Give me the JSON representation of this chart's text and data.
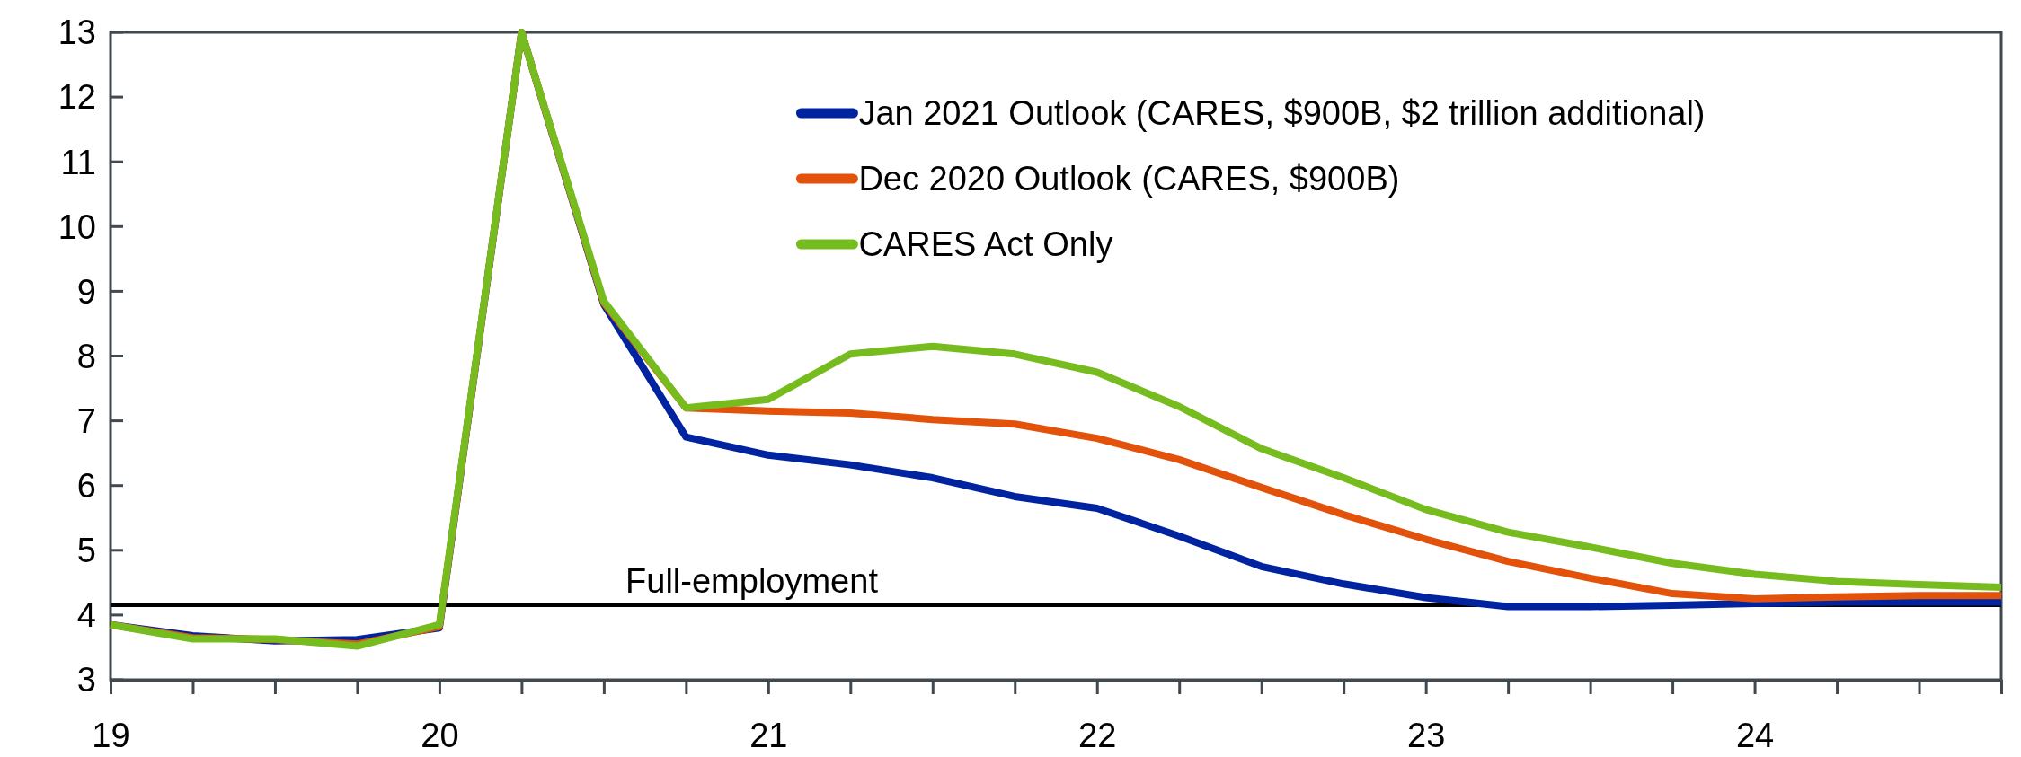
{
  "chart_data": {
    "type": "line",
    "x": [
      19,
      19.25,
      19.5,
      19.75,
      20,
      20.25,
      20.5,
      20.75,
      21,
      21.25,
      21.5,
      21.75,
      22,
      22.25,
      22.5,
      22.75,
      23,
      23.25,
      23.5,
      23.75,
      24,
      24.25,
      24.5,
      24.75
    ],
    "series": [
      {
        "name": "Jan 2021 Outlook (CARES, $900B, $2 trillion additional)",
        "color": "#0023a0",
        "values": [
          3.85,
          3.68,
          3.6,
          3.62,
          3.8,
          13,
          8.8,
          6.75,
          6.47,
          6.32,
          6.12,
          5.83,
          5.65,
          5.22,
          4.75,
          4.48,
          4.27,
          4.13,
          4.13,
          4.15,
          4.18,
          4.2,
          4.2,
          4.2
        ]
      },
      {
        "name": "Dec 2020 Outlook (CARES, $900B)",
        "color": "#e2520a",
        "values": [
          3.85,
          3.65,
          3.62,
          3.55,
          3.82,
          13,
          8.82,
          7.2,
          7.15,
          7.12,
          7.02,
          6.95,
          6.73,
          6.4,
          5.97,
          5.55,
          5.17,
          4.83,
          4.57,
          4.33,
          4.25,
          4.28,
          4.3,
          4.3
        ]
      },
      {
        "name": "CARES Act Only",
        "color": "#77bc1f",
        "values": [
          3.85,
          3.63,
          3.63,
          3.52,
          3.85,
          13,
          8.85,
          7.2,
          7.33,
          8.03,
          8.15,
          8.03,
          7.75,
          7.22,
          6.57,
          6.12,
          5.63,
          5.28,
          5.05,
          4.8,
          4.63,
          4.52,
          4.47,
          4.43
        ]
      }
    ],
    "xlim": [
      19,
      24.75
    ],
    "xticks": [
      19,
      {
        "value": 19.25,
        "label": null
      },
      {
        "value": 19.5,
        "label": null
      },
      {
        "value": 19.75,
        "label": null
      },
      20,
      {
        "value": 20.25,
        "label": null
      },
      {
        "value": 20.5,
        "label": null
      },
      {
        "value": 20.75,
        "label": null
      },
      21,
      {
        "value": 21.25,
        "label": null
      },
      {
        "value": 21.5,
        "label": null
      },
      {
        "value": 21.75,
        "label": null
      },
      22,
      {
        "value": 22.25,
        "label": null
      },
      {
        "value": 22.5,
        "label": null
      },
      {
        "value": 22.75,
        "label": null
      },
      23,
      {
        "value": 23.25,
        "label": null
      },
      {
        "value": 23.5,
        "label": null
      },
      {
        "value": 23.75,
        "label": null
      },
      24,
      {
        "value": 24.25,
        "label": null
      },
      {
        "value": 24.5,
        "label": null
      },
      {
        "value": 24.75,
        "label": null
      }
    ],
    "ylim": [
      3,
      13
    ],
    "yticks": [
      3,
      4,
      5,
      6,
      7,
      8,
      9,
      10,
      11,
      12,
      13
    ],
    "ref_lines": [
      {
        "axis": "y",
        "value": 4.15,
        "label": "Full-employment",
        "color": "#000000"
      }
    ],
    "legend": "top right",
    "grid": false,
    "marker": "none",
    "line_style": "solid"
  }
}
